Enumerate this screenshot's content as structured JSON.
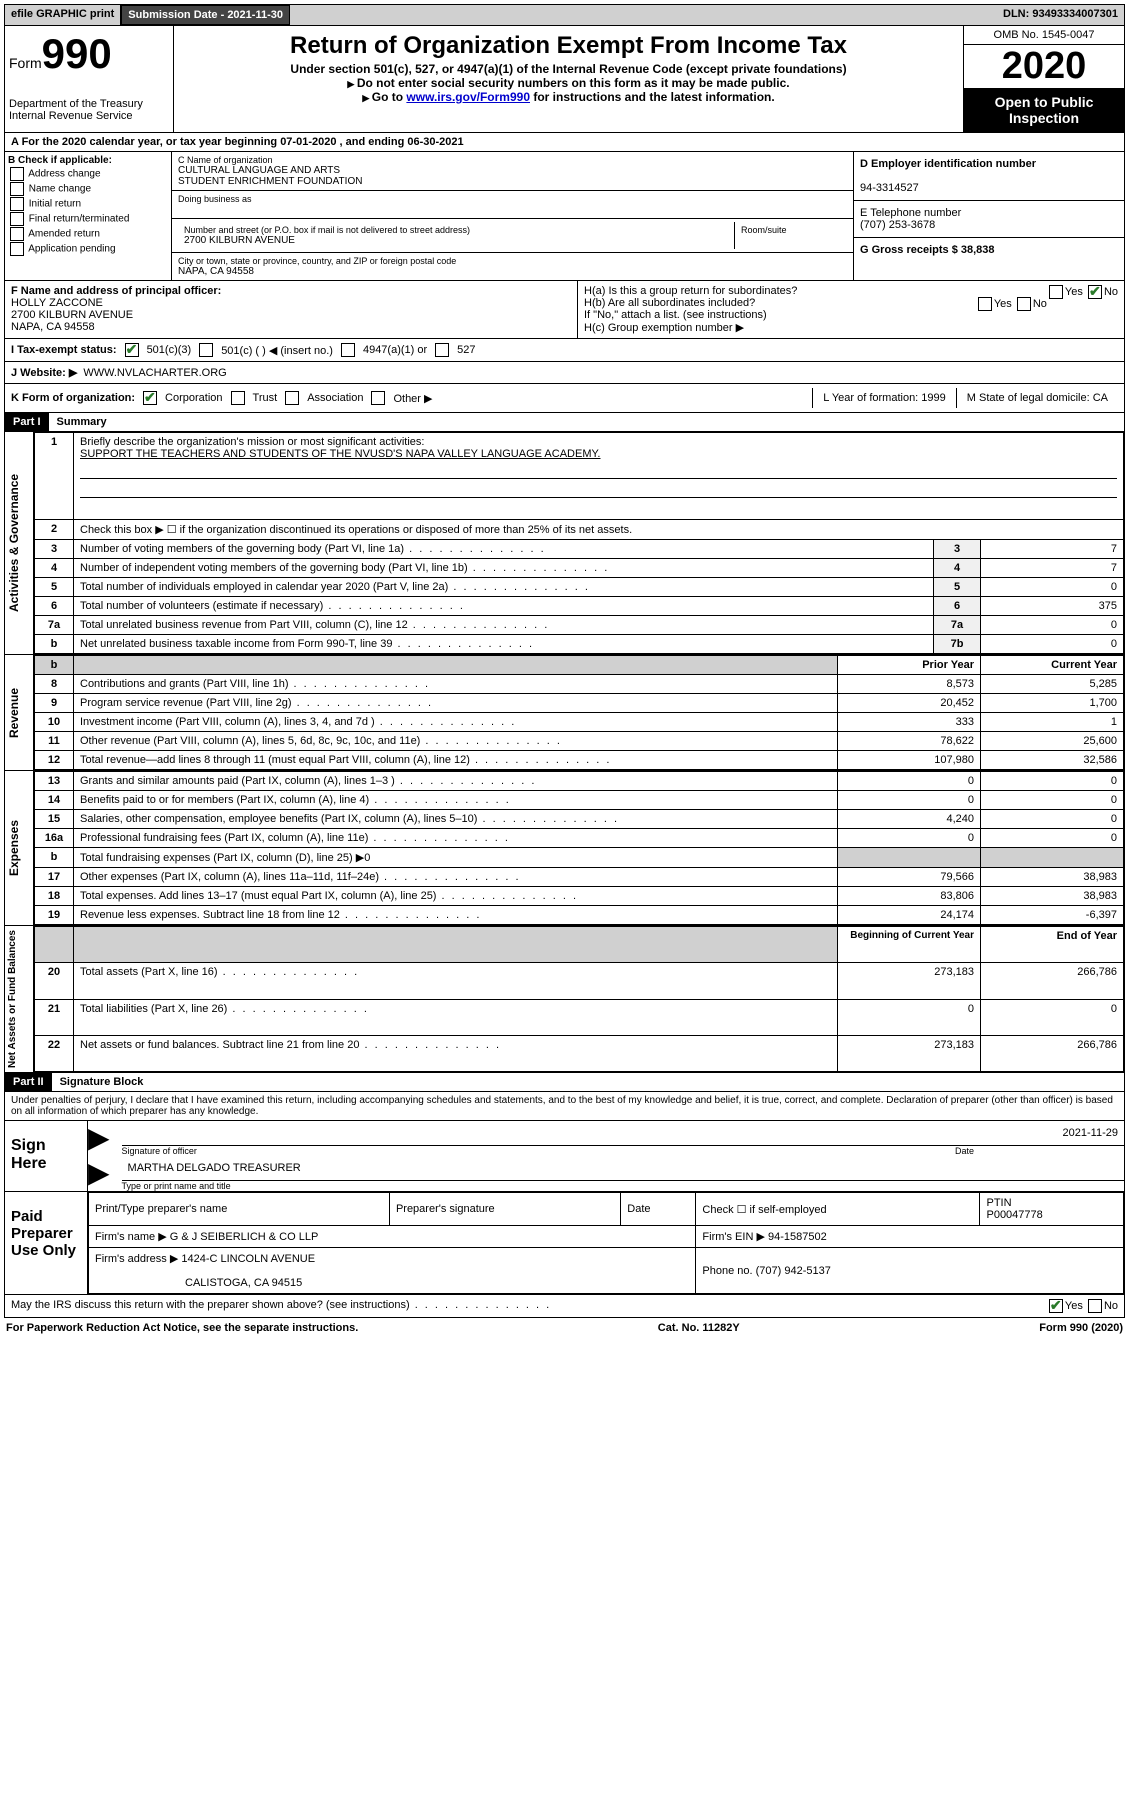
{
  "top": {
    "efile": "efile GRAPHIC print",
    "submission_label": "Submission Date - 2021-11-30",
    "dln": "DLN: 93493334007301"
  },
  "header": {
    "form_word": "Form",
    "form_num": "990",
    "dept1": "Department of the Treasury",
    "dept2": "Internal Revenue Service",
    "title": "Return of Organization Exempt From Income Tax",
    "sub1": "Under section 501(c), 527, or 4947(a)(1) of the Internal Revenue Code (except private foundations)",
    "sub2": "Do not enter social security numbers on this form as it may be made public.",
    "sub3a": "Go to ",
    "sub3_link": "www.irs.gov/Form990",
    "sub3b": " for instructions and the latest information.",
    "omb": "OMB No. 1545-0047",
    "year": "2020",
    "open": "Open to Public Inspection"
  },
  "period": "A For the 2020 calendar year, or tax year beginning 07-01-2020   , and ending 06-30-2021",
  "boxB": {
    "hdr": "B Check if applicable:",
    "addr": "Address change",
    "name": "Name change",
    "init": "Initial return",
    "final": "Final return/terminated",
    "amend": "Amended return",
    "app": "Application pending"
  },
  "boxC": {
    "name_lbl": "C Name of organization",
    "name1": "CULTURAL LANGUAGE AND ARTS",
    "name2": "STUDENT ENRICHMENT FOUNDATION",
    "dba_lbl": "Doing business as",
    "street_lbl": "Number and street (or P.O. box if mail is not delivered to street address)",
    "room_lbl": "Room/suite",
    "street": "2700 KILBURN AVENUE",
    "city_lbl": "City or town, state or province, country, and ZIP or foreign postal code",
    "city": "NAPA, CA  94558"
  },
  "right": {
    "d_lbl": "D Employer identification number",
    "d_val": "94-3314527",
    "e_lbl": "E Telephone number",
    "e_val": "(707) 253-3678",
    "g_lbl": "G Gross receipts $ 38,838"
  },
  "boxF": {
    "lbl": "F Name and address of principal officer:",
    "name": "HOLLY ZACCONE",
    "street": "2700 KILBURN AVENUE",
    "city": "NAPA, CA  94558"
  },
  "boxH": {
    "ha": "H(a)  Is this a group return for subordinates?",
    "hb": "H(b)  Are all subordinates included?",
    "hb_note": "If \"No,\" attach a list. (see instructions)",
    "hc": "H(c)  Group exemption number ▶",
    "yes": "Yes",
    "no": "No"
  },
  "status": {
    "lbl": "I  Tax-exempt status:",
    "c3": "501(c)(3)",
    "c": "501(c) (   ) ◀ (insert no.)",
    "a1": "4947(a)(1) or",
    "s527": "527"
  },
  "website": {
    "lbl": "J  Website: ▶",
    "val": "WWW.NVLACHARTER.ORG"
  },
  "korg": {
    "lbl": "K Form of organization:",
    "corp": "Corporation",
    "trust": "Trust",
    "assoc": "Association",
    "other": "Other ▶",
    "l": "L Year of formation: 1999",
    "m": "M State of legal domicile: CA"
  },
  "partI": {
    "hdr": "Part I",
    "title": "Summary"
  },
  "summary": {
    "q1": "Briefly describe the organization's mission or most significant activities:",
    "mission": "SUPPORT THE TEACHERS AND STUDENTS OF THE NVUSD'S NAPA VALLEY LANGUAGE ACADEMY.",
    "q2": "Check this box ▶ ☐  if the organization discontinued its operations or disposed of more than 25% of its net assets.",
    "rows_ag": [
      {
        "n": "3",
        "t": "Number of voting members of the governing body (Part VI, line 1a)",
        "box": "3",
        "v": "7"
      },
      {
        "n": "4",
        "t": "Number of independent voting members of the governing body (Part VI, line 1b)",
        "box": "4",
        "v": "7"
      },
      {
        "n": "5",
        "t": "Total number of individuals employed in calendar year 2020 (Part V, line 2a)",
        "box": "5",
        "v": "0"
      },
      {
        "n": "6",
        "t": "Total number of volunteers (estimate if necessary)",
        "box": "6",
        "v": "375"
      },
      {
        "n": "7a",
        "t": "Total unrelated business revenue from Part VIII, column (C), line 12",
        "box": "7a",
        "v": "0"
      },
      {
        "n": "b",
        "t": "Net unrelated business taxable income from Form 990-T, line 39",
        "box": "7b",
        "v": "0"
      }
    ],
    "prior_hdr": "Prior Year",
    "curr_hdr": "Current Year",
    "rows_rev": [
      {
        "n": "8",
        "t": "Contributions and grants (Part VIII, line 1h)",
        "p": "8,573",
        "c": "5,285"
      },
      {
        "n": "9",
        "t": "Program service revenue (Part VIII, line 2g)",
        "p": "20,452",
        "c": "1,700"
      },
      {
        "n": "10",
        "t": "Investment income (Part VIII, column (A), lines 3, 4, and 7d )",
        "p": "333",
        "c": "1"
      },
      {
        "n": "11",
        "t": "Other revenue (Part VIII, column (A), lines 5, 6d, 8c, 9c, 10c, and 11e)",
        "p": "78,622",
        "c": "25,600"
      },
      {
        "n": "12",
        "t": "Total revenue—add lines 8 through 11 (must equal Part VIII, column (A), line 12)",
        "p": "107,980",
        "c": "32,586"
      }
    ],
    "rows_exp": [
      {
        "n": "13",
        "t": "Grants and similar amounts paid (Part IX, column (A), lines 1–3 )",
        "p": "0",
        "c": "0"
      },
      {
        "n": "14",
        "t": "Benefits paid to or for members (Part IX, column (A), line 4)",
        "p": "0",
        "c": "0"
      },
      {
        "n": "15",
        "t": "Salaries, other compensation, employee benefits (Part IX, column (A), lines 5–10)",
        "p": "4,240",
        "c": "0"
      },
      {
        "n": "16a",
        "t": "Professional fundraising fees (Part IX, column (A), line 11e)",
        "p": "0",
        "c": "0"
      }
    ],
    "row_16b": {
      "n": "b",
      "t": "Total fundraising expenses (Part IX, column (D), line 25) ▶0"
    },
    "rows_exp2": [
      {
        "n": "17",
        "t": "Other expenses (Part IX, column (A), lines 11a–11d, 11f–24e)",
        "p": "79,566",
        "c": "38,983"
      },
      {
        "n": "18",
        "t": "Total expenses. Add lines 13–17 (must equal Part IX, column (A), line 25)",
        "p": "83,806",
        "c": "38,983"
      },
      {
        "n": "19",
        "t": "Revenue less expenses. Subtract line 18 from line 12",
        "p": "24,174",
        "c": "-6,397"
      }
    ],
    "beg_hdr": "Beginning of Current Year",
    "end_hdr": "End of Year",
    "rows_net": [
      {
        "n": "20",
        "t": "Total assets (Part X, line 16)",
        "p": "273,183",
        "c": "266,786"
      },
      {
        "n": "21",
        "t": "Total liabilities (Part X, line 26)",
        "p": "0",
        "c": "0"
      },
      {
        "n": "22",
        "t": "Net assets or fund balances. Subtract line 21 from line 20",
        "p": "273,183",
        "c": "266,786"
      }
    ],
    "side_ag": "Activities & Governance",
    "side_rev": "Revenue",
    "side_exp": "Expenses",
    "side_net": "Net Assets or Fund Balances"
  },
  "partII": {
    "hdr": "Part II",
    "title": "Signature Block",
    "decl": "Under penalties of perjury, I declare that I have examined this return, including accompanying schedules and statements, and to the best of my knowledge and belief, it is true, correct, and complete. Declaration of preparer (other than officer) is based on all information of which preparer has any knowledge."
  },
  "sign": {
    "here": "Sign Here",
    "sig_of": "Signature of officer",
    "date_lbl": "Date",
    "date": "2021-11-29",
    "name": "MARTHA DELGADO  TREASURER",
    "type_lbl": "Type or print name and title"
  },
  "paid": {
    "hdr": "Paid Preparer Use Only",
    "c1": "Print/Type preparer's name",
    "c2": "Preparer's signature",
    "c3": "Date",
    "c4a": "Check ☐ if self-employed",
    "c5": "PTIN",
    "ptin": "P00047778",
    "firm_lbl": "Firm's name   ▶",
    "firm": "G & J SEIBERLICH & CO LLP",
    "ein_lbl": "Firm's EIN ▶",
    "ein": "94-1587502",
    "addr_lbl": "Firm's address ▶",
    "addr1": "1424-C LINCOLN AVENUE",
    "addr2": "CALISTOGA, CA  94515",
    "phone_lbl": "Phone no.",
    "phone": "(707) 942-5137",
    "discuss": "May the IRS discuss this return with the preparer shown above? (see instructions)"
  },
  "footer": {
    "l": "For Paperwork Reduction Act Notice, see the separate instructions.",
    "c": "Cat. No. 11282Y",
    "r": "Form 990 (2020)"
  }
}
